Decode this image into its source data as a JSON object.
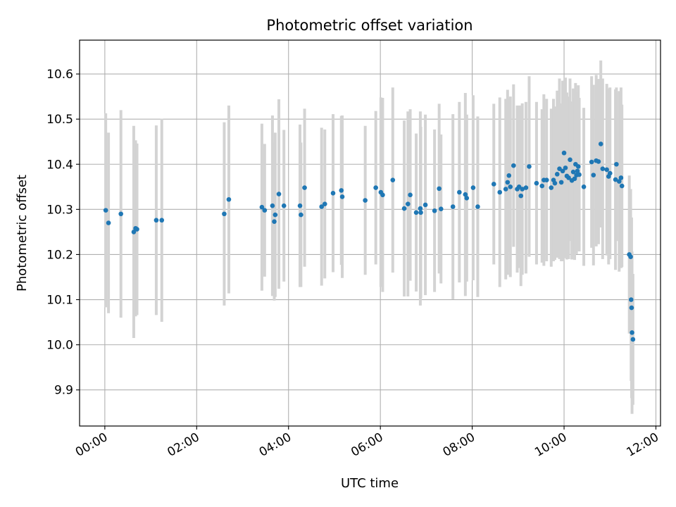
{
  "chart_data": {
    "type": "scatter",
    "title": "Photometric offset variation",
    "xlabel": "UTC time",
    "ylabel": "Photometric offset",
    "x_unit": "hours (UTC)",
    "xlim": [
      -0.55,
      12.1
    ],
    "ylim": [
      9.82,
      10.675
    ],
    "grid": true,
    "x_ticks": [
      {
        "value": 0,
        "label": "00:00"
      },
      {
        "value": 2,
        "label": "02:00"
      },
      {
        "value": 4,
        "label": "04:00"
      },
      {
        "value": 6,
        "label": "06:00"
      },
      {
        "value": 8,
        "label": "08:00"
      },
      {
        "value": 10,
        "label": "10:00"
      },
      {
        "value": 12,
        "label": "12:00"
      }
    ],
    "y_ticks": [
      {
        "value": 9.9,
        "label": "9.9"
      },
      {
        "value": 10.0,
        "label": "10.0"
      },
      {
        "value": 10.1,
        "label": "10.1"
      },
      {
        "value": 10.2,
        "label": "10.2"
      },
      {
        "value": 10.3,
        "label": "10.3"
      },
      {
        "value": 10.4,
        "label": "10.4"
      },
      {
        "value": 10.5,
        "label": "10.5"
      },
      {
        "value": 10.6,
        "label": "10.6"
      }
    ],
    "colors": {
      "points": "#1f77b4",
      "errorbars": "#d3d3d3",
      "grid": "#b0b0b0"
    },
    "series": [
      {
        "points": [
          {
            "x": 0.02,
            "y": 10.298,
            "err": 0.215
          },
          {
            "x": 0.08,
            "y": 10.27,
            "err": 0.2
          },
          {
            "x": 0.35,
            "y": 10.29,
            "err": 0.23
          },
          {
            "x": 0.63,
            "y": 10.25,
            "err": 0.235
          },
          {
            "x": 0.67,
            "y": 10.258,
            "err": 0.195
          },
          {
            "x": 0.7,
            "y": 10.256,
            "err": 0.19
          },
          {
            "x": 1.12,
            "y": 10.276,
            "err": 0.21
          },
          {
            "x": 1.24,
            "y": 10.276,
            "err": 0.225
          },
          {
            "x": 2.6,
            "y": 10.29,
            "err": 0.203
          },
          {
            "x": 2.7,
            "y": 10.322,
            "err": 0.208
          },
          {
            "x": 3.42,
            "y": 10.305,
            "err": 0.185
          },
          {
            "x": 3.48,
            "y": 10.298,
            "err": 0.147
          },
          {
            "x": 3.65,
            "y": 10.308,
            "err": 0.2
          },
          {
            "x": 3.69,
            "y": 10.273,
            "err": 0.175
          },
          {
            "x": 3.71,
            "y": 10.288,
            "err": 0.182
          },
          {
            "x": 3.79,
            "y": 10.334,
            "err": 0.21
          },
          {
            "x": 3.9,
            "y": 10.308,
            "err": 0.168
          },
          {
            "x": 4.25,
            "y": 10.308,
            "err": 0.18
          },
          {
            "x": 4.27,
            "y": 10.288,
            "err": 0.16
          },
          {
            "x": 4.35,
            "y": 10.348,
            "err": 0.175
          },
          {
            "x": 4.72,
            "y": 10.306,
            "err": 0.175
          },
          {
            "x": 4.79,
            "y": 10.312,
            "err": 0.165
          },
          {
            "x": 4.97,
            "y": 10.336,
            "err": 0.175
          },
          {
            "x": 5.15,
            "y": 10.342,
            "err": 0.165
          },
          {
            "x": 5.17,
            "y": 10.328,
            "err": 0.18
          },
          {
            "x": 5.67,
            "y": 10.32,
            "err": 0.165
          },
          {
            "x": 5.9,
            "y": 10.348,
            "err": 0.17
          },
          {
            "x": 6.01,
            "y": 10.338,
            "err": 0.21
          },
          {
            "x": 6.05,
            "y": 10.332,
            "err": 0.215
          },
          {
            "x": 6.27,
            "y": 10.365,
            "err": 0.205
          },
          {
            "x": 6.52,
            "y": 10.302,
            "err": 0.195
          },
          {
            "x": 6.6,
            "y": 10.312,
            "err": 0.205
          },
          {
            "x": 6.65,
            "y": 10.332,
            "err": 0.19
          },
          {
            "x": 6.78,
            "y": 10.293,
            "err": 0.175
          },
          {
            "x": 6.87,
            "y": 10.302,
            "err": 0.215
          },
          {
            "x": 6.88,
            "y": 10.293,
            "err": 0.19
          },
          {
            "x": 6.98,
            "y": 10.31,
            "err": 0.2
          },
          {
            "x": 7.18,
            "y": 10.297,
            "err": 0.18
          },
          {
            "x": 7.28,
            "y": 10.346,
            "err": 0.188
          },
          {
            "x": 7.32,
            "y": 10.301,
            "err": 0.165
          },
          {
            "x": 7.58,
            "y": 10.306,
            "err": 0.205
          },
          {
            "x": 7.72,
            "y": 10.338,
            "err": 0.2
          },
          {
            "x": 7.85,
            "y": 10.333,
            "err": 0.225
          },
          {
            "x": 7.88,
            "y": 10.325,
            "err": 0.185
          },
          {
            "x": 8.02,
            "y": 10.348,
            "err": 0.205
          },
          {
            "x": 8.12,
            "y": 10.306,
            "err": 0.2
          },
          {
            "x": 8.47,
            "y": 10.356,
            "err": 0.178
          },
          {
            "x": 8.6,
            "y": 10.338,
            "err": 0.21
          },
          {
            "x": 8.73,
            "y": 10.345,
            "err": 0.2
          },
          {
            "x": 8.77,
            "y": 10.36,
            "err": 0.205
          },
          {
            "x": 8.8,
            "y": 10.375,
            "err": 0.17
          },
          {
            "x": 8.83,
            "y": 10.35,
            "err": 0.2
          },
          {
            "x": 8.9,
            "y": 10.397,
            "err": 0.18
          },
          {
            "x": 8.98,
            "y": 10.345,
            "err": 0.185
          },
          {
            "x": 9.02,
            "y": 10.35,
            "err": 0.18
          },
          {
            "x": 9.06,
            "y": 10.33,
            "err": 0.2
          },
          {
            "x": 9.09,
            "y": 10.345,
            "err": 0.19
          },
          {
            "x": 9.17,
            "y": 10.348,
            "err": 0.19
          },
          {
            "x": 9.24,
            "y": 10.395,
            "err": 0.2
          },
          {
            "x": 9.4,
            "y": 10.358,
            "err": 0.18
          },
          {
            "x": 9.52,
            "y": 10.352,
            "err": 0.17
          },
          {
            "x": 9.56,
            "y": 10.365,
            "err": 0.19
          },
          {
            "x": 9.62,
            "y": 10.365,
            "err": 0.18
          },
          {
            "x": 9.72,
            "y": 10.348,
            "err": 0.175
          },
          {
            "x": 9.77,
            "y": 10.365,
            "err": 0.18
          },
          {
            "x": 9.8,
            "y": 10.358,
            "err": 0.17
          },
          {
            "x": 9.85,
            "y": 10.378,
            "err": 0.185
          },
          {
            "x": 9.9,
            "y": 10.39,
            "err": 0.2
          },
          {
            "x": 9.94,
            "y": 10.36,
            "err": 0.175
          },
          {
            "x": 9.97,
            "y": 10.385,
            "err": 0.2
          },
          {
            "x": 10.0,
            "y": 10.425,
            "err": 0.16
          },
          {
            "x": 10.03,
            "y": 10.392,
            "err": 0.2
          },
          {
            "x": 10.06,
            "y": 10.374,
            "err": 0.185
          },
          {
            "x": 10.1,
            "y": 10.37,
            "err": 0.18
          },
          {
            "x": 10.13,
            "y": 10.41,
            "err": 0.18
          },
          {
            "x": 10.17,
            "y": 10.364,
            "err": 0.175
          },
          {
            "x": 10.2,
            "y": 10.383,
            "err": 0.185
          },
          {
            "x": 10.23,
            "y": 10.368,
            "err": 0.18
          },
          {
            "x": 10.25,
            "y": 10.4,
            "err": 0.18
          },
          {
            "x": 10.27,
            "y": 10.376,
            "err": 0.175
          },
          {
            "x": 10.29,
            "y": 10.385,
            "err": 0.175
          },
          {
            "x": 10.31,
            "y": 10.395,
            "err": 0.18
          },
          {
            "x": 10.33,
            "y": 10.377,
            "err": 0.17
          },
          {
            "x": 10.43,
            "y": 10.35,
            "err": 0.175
          },
          {
            "x": 10.6,
            "y": 10.405,
            "err": 0.19
          },
          {
            "x": 10.64,
            "y": 10.376,
            "err": 0.2
          },
          {
            "x": 10.7,
            "y": 10.408,
            "err": 0.19
          },
          {
            "x": 10.75,
            "y": 10.406,
            "err": 0.183
          },
          {
            "x": 10.8,
            "y": 10.445,
            "err": 0.185
          },
          {
            "x": 10.84,
            "y": 10.39,
            "err": 0.2
          },
          {
            "x": 10.93,
            "y": 10.388,
            "err": 0.19
          },
          {
            "x": 10.97,
            "y": 10.373,
            "err": 0.195
          },
          {
            "x": 11.0,
            "y": 10.38,
            "err": 0.19
          },
          {
            "x": 11.12,
            "y": 10.366,
            "err": 0.2
          },
          {
            "x": 11.14,
            "y": 10.4,
            "err": 0.17
          },
          {
            "x": 11.2,
            "y": 10.362,
            "err": 0.2
          },
          {
            "x": 11.24,
            "y": 10.37,
            "err": 0.2
          },
          {
            "x": 11.26,
            "y": 10.352,
            "err": 0.18
          },
          {
            "x": 11.42,
            "y": 10.2,
            "err": 0.175
          },
          {
            "x": 11.45,
            "y": 10.195,
            "err": 0.15
          },
          {
            "x": 11.46,
            "y": 10.1,
            "err": 0.18
          },
          {
            "x": 11.47,
            "y": 10.082,
            "err": 0.2
          },
          {
            "x": 11.48,
            "y": 10.027,
            "err": 0.18
          },
          {
            "x": 11.5,
            "y": 10.012,
            "err": 0.145
          }
        ]
      }
    ]
  }
}
